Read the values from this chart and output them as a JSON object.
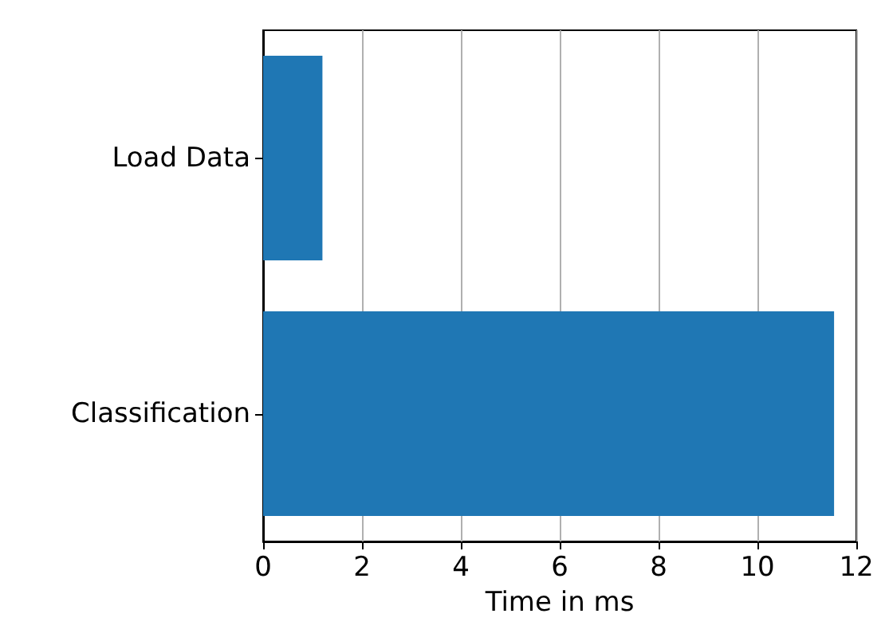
{
  "chart_data": {
    "type": "bar",
    "orientation": "horizontal",
    "categories": [
      "Load Data",
      "Classification"
    ],
    "values": [
      1.2,
      11.55
    ],
    "color": "#1f77b4",
    "xlabel": "Time in ms",
    "xlim": [
      0,
      12
    ],
    "xticks": [
      0,
      2,
      4,
      6,
      8,
      10,
      12
    ],
    "grid": "x"
  }
}
